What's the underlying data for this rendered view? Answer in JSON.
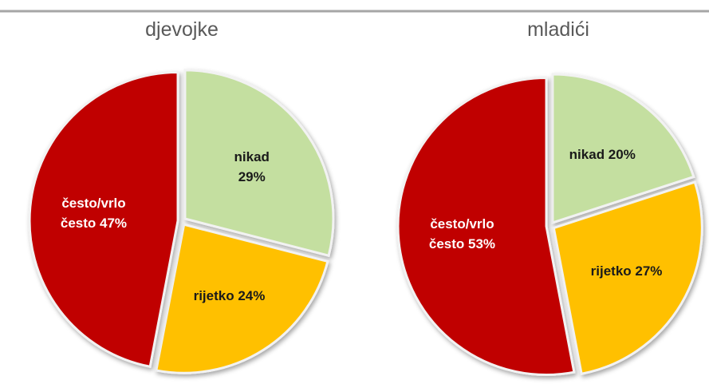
{
  "chart_data": [
    {
      "type": "pie",
      "title": "djevojke",
      "categories": [
        "nikad",
        "rijetko",
        "često/vrlo često"
      ],
      "values": [
        29,
        24,
        47
      ],
      "value_labels": [
        "nikad 29%",
        "rijetko 24%",
        "često/vrlo često 47%"
      ],
      "colors": [
        "#c4dfa0",
        "#ffc000",
        "#c00000"
      ]
    },
    {
      "type": "pie",
      "title": "mladići",
      "categories": [
        "nikad",
        "rijetko",
        "često/vrlo često"
      ],
      "values": [
        20,
        27,
        53
      ],
      "value_labels": [
        "nikad 20%",
        "rijetko 27%",
        "često/vrlo često 53%"
      ],
      "colors": [
        "#c4dfa0",
        "#ffc000",
        "#c00000"
      ]
    }
  ]
}
